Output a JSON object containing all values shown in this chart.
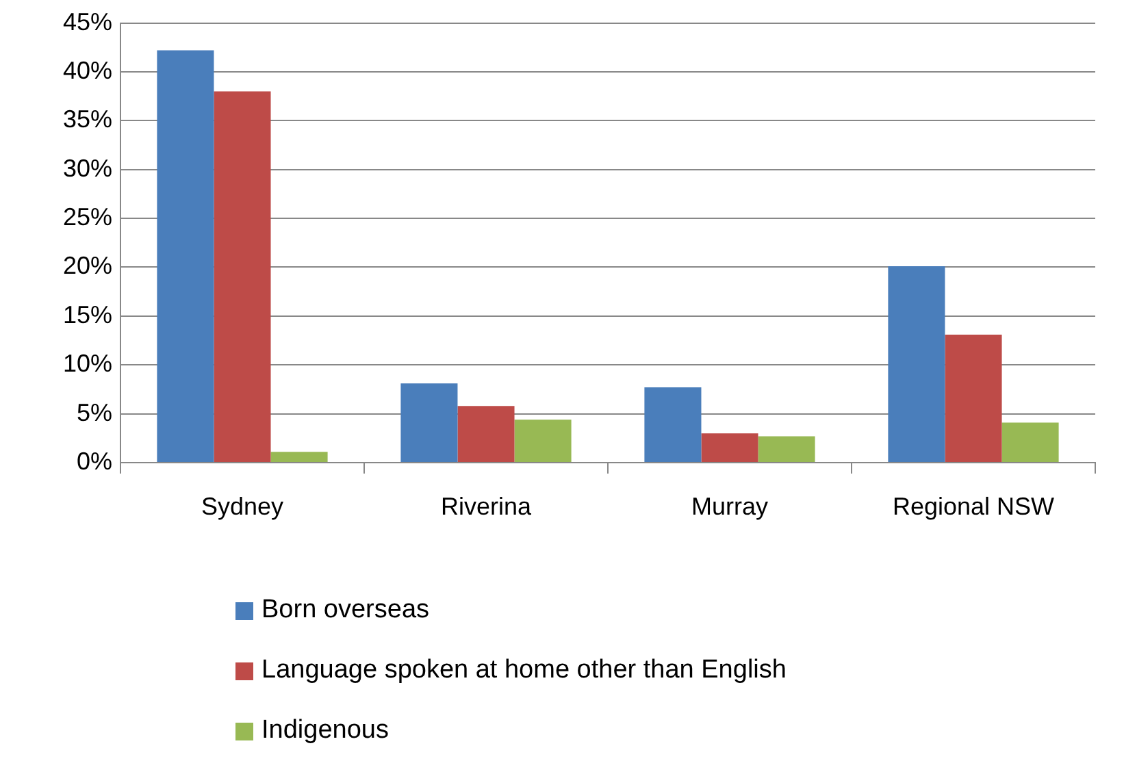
{
  "chart_data": {
    "type": "bar",
    "categories": [
      "Sydney",
      "Riverina",
      "Murray",
      "Regional NSW"
    ],
    "series": [
      {
        "name": "Born overseas",
        "color": "#4a7ebb",
        "values": [
          42.2,
          8.1,
          7.7,
          20.1
        ]
      },
      {
        "name": "Language spoken at home other than English",
        "color": "#be4b48",
        "values": [
          38.0,
          5.8,
          3.0,
          13.1
        ]
      },
      {
        "name": "Indigenous",
        "color": "#98b954",
        "values": [
          1.1,
          4.4,
          2.7,
          4.1
        ]
      }
    ],
    "ylim": [
      0,
      45
    ],
    "yticks": [
      {
        "value": 0,
        "label": "0%"
      },
      {
        "value": 5,
        "label": "5%"
      },
      {
        "value": 10,
        "label": "10%"
      },
      {
        "value": 15,
        "label": "15%"
      },
      {
        "value": 20,
        "label": "20%"
      },
      {
        "value": 25,
        "label": "25%"
      },
      {
        "value": 30,
        "label": "30%"
      },
      {
        "value": 35,
        "label": "35%"
      },
      {
        "value": 40,
        "label": "40%"
      },
      {
        "value": 45,
        "label": "45%"
      }
    ],
    "grid": "y",
    "legend": "bottom"
  }
}
